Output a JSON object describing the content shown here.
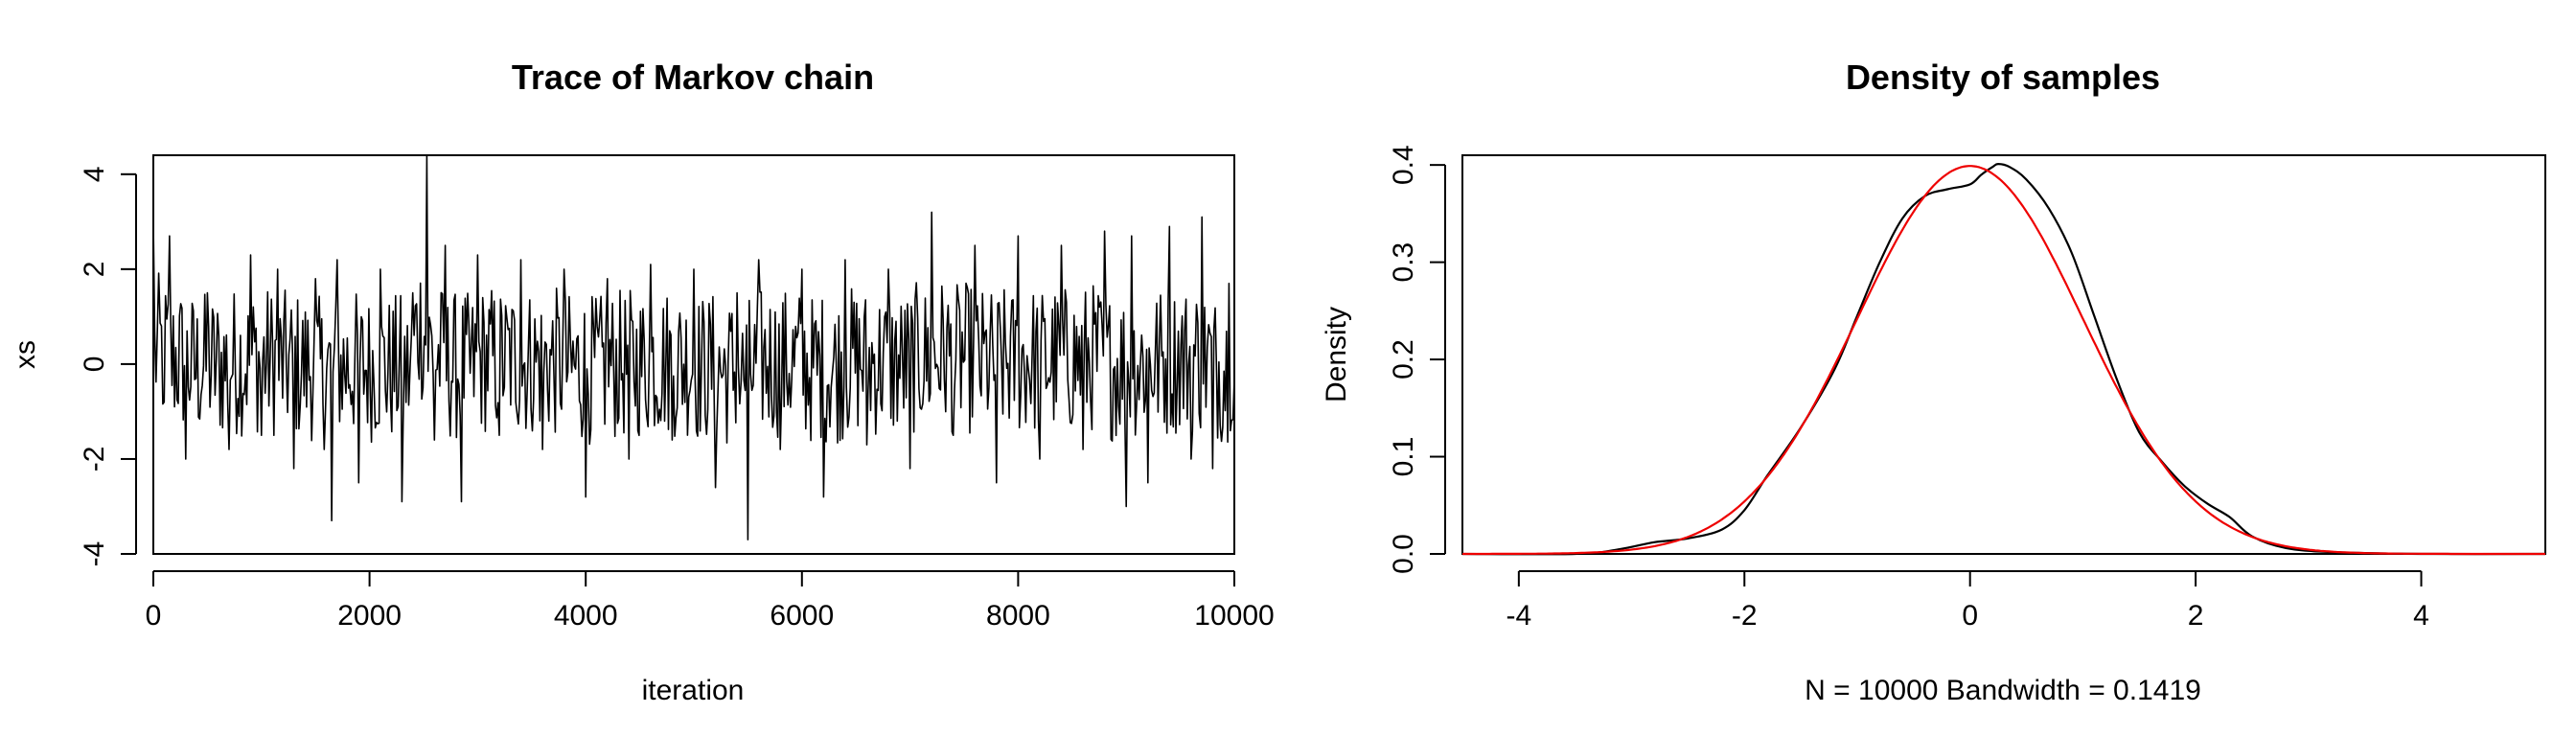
{
  "chart_data": [
    {
      "type": "line",
      "title": "Trace of Markov chain",
      "xlabel": "iteration",
      "ylabel": "xs",
      "xlim": [
        0,
        10000
      ],
      "ylim": [
        -4,
        4.4
      ],
      "x_ticks": [
        0,
        2000,
        4000,
        6000,
        8000,
        10000
      ],
      "y_ticks": [
        -4,
        -2,
        0,
        2,
        4
      ],
      "grid": false,
      "series": [
        {
          "color": "#000000",
          "x": [
            0,
            100,
            150,
            300,
            500,
            700,
            900,
            1000,
            1150,
            1300,
            1500,
            1650,
            1700,
            1900,
            2100,
            2300,
            2400,
            2530,
            2600,
            2700,
            2850,
            3000,
            3200,
            3400,
            3600,
            3800,
            4000,
            4200,
            4400,
            4600,
            4800,
            5000,
            5200,
            5400,
            5500,
            5600,
            5800,
            6000,
            6200,
            6400,
            6600,
            6800,
            7000,
            7200,
            7400,
            7600,
            7800,
            8000,
            8200,
            8400,
            8600,
            8800,
            9000,
            9050,
            9200,
            9400,
            9600,
            9700,
            9800,
            9950,
            10000
          ],
          "y": [
            3.0,
            -0.8,
            2.7,
            -2.0,
            1.5,
            -1.8,
            2.3,
            -1.5,
            2.0,
            -2.2,
            1.8,
            -3.3,
            2.2,
            -2.5,
            2.0,
            -2.9,
            1.5,
            4.4,
            -1.6,
            2.5,
            -2.9,
            2.3,
            -1.5,
            2.2,
            -1.8,
            2.0,
            -2.8,
            1.8,
            -2.0,
            2.1,
            -1.6,
            2.0,
            -2.6,
            1.5,
            -3.7,
            2.2,
            -1.8,
            2.0,
            -2.8,
            2.2,
            -1.7,
            2.0,
            -2.2,
            3.2,
            -1.5,
            2.5,
            -2.5,
            2.7,
            -2.0,
            2.5,
            -1.8,
            2.8,
            -3.0,
            2.7,
            -2.5,
            2.9,
            -2.0,
            3.1,
            -2.2,
            1.7,
            -0.3
          ]
        }
      ]
    },
    {
      "type": "line",
      "title": "Density of samples",
      "xlabel": "N = 10000   Bandwidth = 0.1419",
      "ylabel": "Density",
      "xlim": [
        -4.5,
        5.1
      ],
      "ylim": [
        0,
        0.41
      ],
      "x_ticks": [
        -4,
        -2,
        0,
        2,
        4
      ],
      "y_ticks": [
        0.0,
        0.1,
        0.2,
        0.3,
        0.4
      ],
      "y_tick_labels": [
        "0.0",
        "0.1",
        "0.2",
        "0.3",
        "0.4"
      ],
      "grid": false,
      "series": [
        {
          "color": "#000000",
          "x": [
            -4.5,
            -3.5,
            -3.1,
            -2.8,
            -2.5,
            -2.2,
            -2.0,
            -1.8,
            -1.5,
            -1.2,
            -1.0,
            -0.8,
            -0.6,
            -0.4,
            -0.2,
            0.0,
            0.1,
            0.2,
            0.25,
            0.35,
            0.5,
            0.7,
            0.9,
            1.1,
            1.3,
            1.5,
            1.7,
            1.9,
            2.1,
            2.3,
            2.5,
            2.8,
            3.2,
            4.0,
            5.1
          ],
          "y": [
            0.0,
            0.0,
            0.005,
            0.012,
            0.016,
            0.025,
            0.045,
            0.08,
            0.13,
            0.19,
            0.245,
            0.3,
            0.345,
            0.368,
            0.375,
            0.38,
            0.39,
            0.398,
            0.401,
            0.398,
            0.385,
            0.355,
            0.31,
            0.245,
            0.18,
            0.125,
            0.095,
            0.07,
            0.052,
            0.038,
            0.018,
            0.006,
            0.002,
            0.0,
            0.0
          ]
        },
        {
          "color": "#ee0000",
          "function": "normal_pdf",
          "mean": 0,
          "sd": 1
        }
      ]
    }
  ]
}
